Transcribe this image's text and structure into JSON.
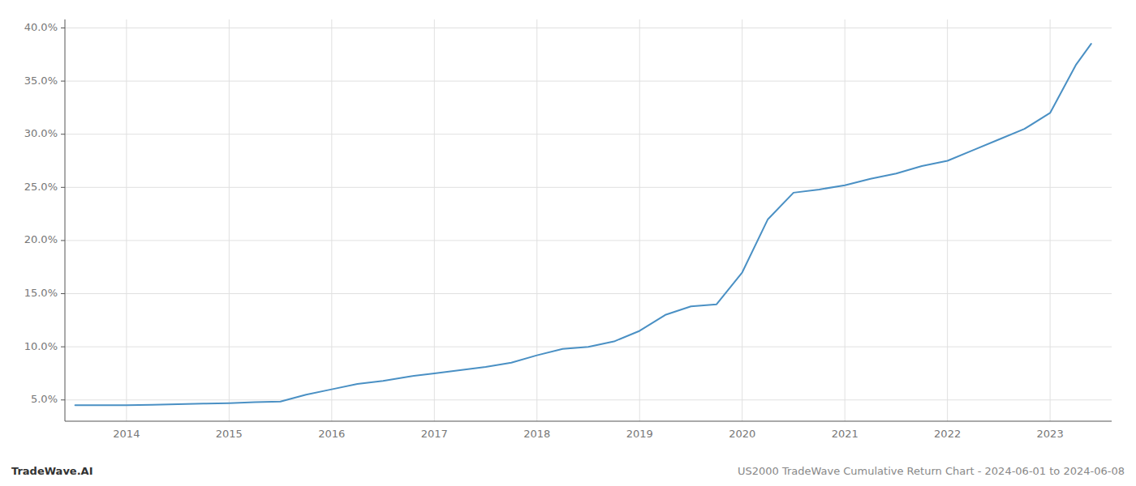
{
  "chart_data": {
    "type": "line",
    "x": [
      2013.5,
      2013.75,
      2014.0,
      2014.25,
      2014.5,
      2014.75,
      2015.0,
      2015.25,
      2015.5,
      2015.75,
      2016.0,
      2016.25,
      2016.5,
      2016.75,
      2017.0,
      2017.25,
      2017.5,
      2017.75,
      2018.0,
      2018.25,
      2018.5,
      2018.75,
      2019.0,
      2019.25,
      2019.5,
      2019.75,
      2020.0,
      2020.25,
      2020.5,
      2020.75,
      2021.0,
      2021.25,
      2021.5,
      2021.75,
      2022.0,
      2022.25,
      2022.5,
      2022.75,
      2023.0,
      2023.25,
      2023.4
    ],
    "values": [
      4.5,
      4.5,
      4.5,
      4.55,
      4.6,
      4.65,
      4.7,
      4.8,
      4.85,
      5.5,
      6.0,
      6.5,
      6.8,
      7.2,
      7.5,
      7.8,
      8.1,
      8.5,
      9.2,
      9.8,
      10.0,
      10.5,
      11.5,
      13.0,
      13.8,
      14.0,
      17.0,
      22.0,
      24.5,
      24.8,
      25.2,
      25.8,
      26.3,
      27.0,
      27.5,
      28.5,
      29.5,
      30.5,
      32.0,
      36.5,
      38.5
    ],
    "color": "#4a90c4",
    "xlim": [
      2013.4,
      2023.6
    ],
    "xticks": [
      2014,
      2015,
      2016,
      2017,
      2018,
      2019,
      2020,
      2021,
      2022,
      2023
    ],
    "ylim": [
      3.0,
      40.8
    ],
    "yticks": [
      {
        "value": 5.0,
        "label": "5.0%"
      },
      {
        "value": 10.0,
        "label": "10.0%"
      },
      {
        "value": 15.0,
        "label": "15.0%"
      },
      {
        "value": 20.0,
        "label": "20.0%"
      },
      {
        "value": 25.0,
        "label": "25.0%"
      },
      {
        "value": 30.0,
        "label": "30.0%"
      },
      {
        "value": 35.0,
        "label": "35.0%"
      },
      {
        "value": 40.0,
        "label": "40.0%"
      }
    ],
    "grid": true,
    "annotations": [
      "TradeWave.AI",
      "US2000 TradeWave Cumulative Return Chart - 2024-06-01 to 2024-06-08"
    ]
  }
}
